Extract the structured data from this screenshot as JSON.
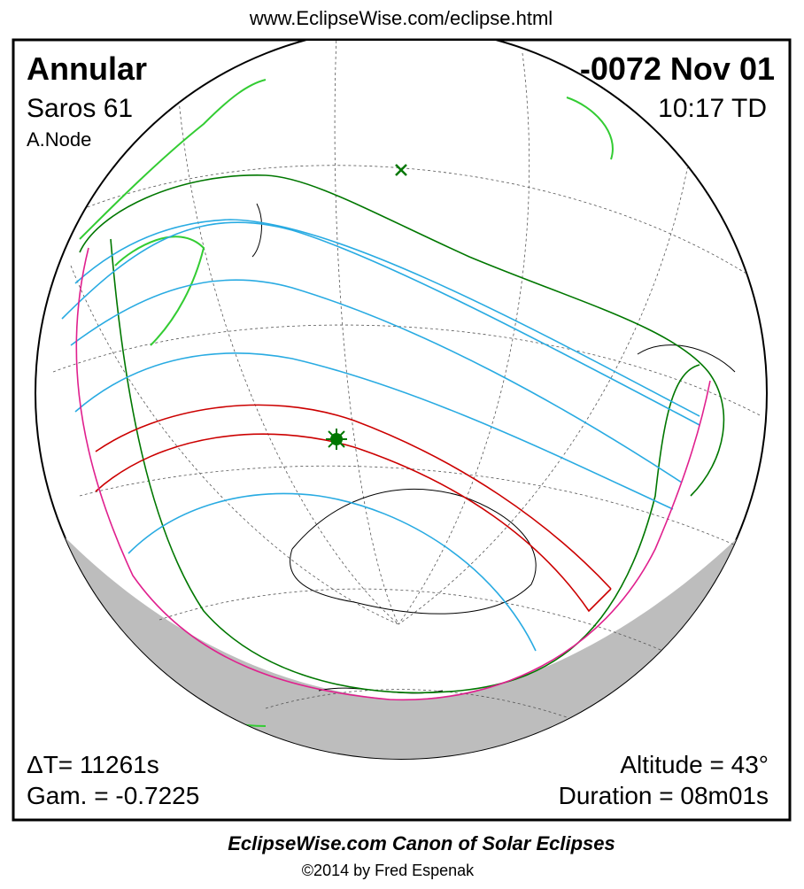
{
  "header": {
    "url": "www.EclipseWise.com/eclipse.html"
  },
  "eclipse": {
    "type": "Annular",
    "saros": "Saros  61",
    "node": "A.Node",
    "date": "-0072 Nov 01",
    "time": "10:17 TD",
    "delta_t": "ΔT=  11261s",
    "gamma": "Gam. = -0.7225",
    "altitude": "Altitude = 43°",
    "duration": "Duration = 08m01s"
  },
  "footer": {
    "title": "EclipseWise.com Canon of Solar Eclipses",
    "copyright": "©2014 by Fred Espenak"
  }
}
